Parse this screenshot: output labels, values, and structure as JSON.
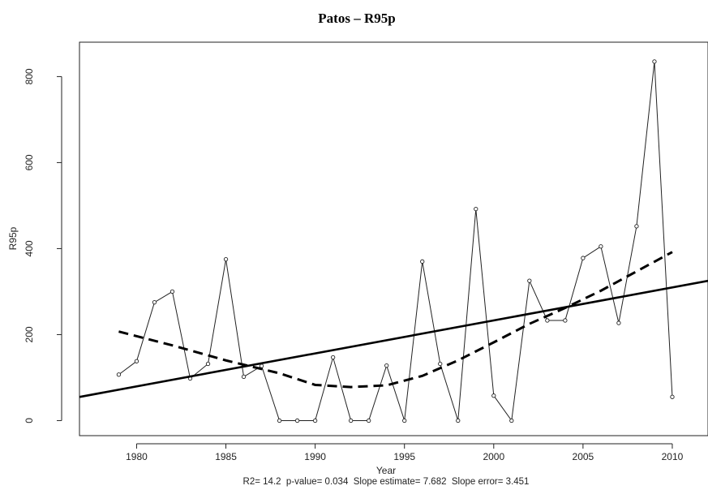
{
  "chart_data": {
    "type": "line",
    "title": "Patos – R95p",
    "xlabel": "Year",
    "ylabel": "R95p",
    "xlim": [
      1976.8,
      2012
    ],
    "ylim": [
      -35,
      880
    ],
    "x_ticks": [
      1980,
      1985,
      1990,
      1995,
      2000,
      2005,
      2010
    ],
    "y_ticks": [
      0,
      200,
      400,
      600,
      800
    ],
    "grid": false,
    "series": [
      {
        "style": "line-with-open-circles",
        "x": [
          1979,
          1980,
          1981,
          1982,
          1983,
          1984,
          1985,
          1986,
          1987,
          1988,
          1989,
          1990,
          1991,
          1992,
          1993,
          1994,
          1995,
          1996,
          1997,
          1998,
          1999,
          2000,
          2001,
          2002,
          2003,
          2004,
          2005,
          2006,
          2007,
          2008,
          2009,
          2010
        ],
        "y": [
          107,
          138,
          275,
          300,
          98,
          132,
          375,
          102,
          127,
          0,
          0,
          0,
          147,
          0,
          0,
          128,
          0,
          370,
          132,
          0,
          492,
          58,
          0,
          325,
          233,
          233,
          378,
          405,
          227,
          452,
          835,
          55
        ]
      },
      {
        "style": "linear-trend",
        "x": [
          1976.8,
          2012
        ],
        "y": [
          55,
          325
        ]
      },
      {
        "style": "dashed-smooth",
        "x": [
          1979,
          1982,
          1985,
          1988,
          1990,
          1992,
          1994,
          1996,
          1998,
          2000,
          2002,
          2004,
          2006,
          2008,
          2010
        ],
        "y": [
          207,
          175,
          140,
          110,
          83,
          78,
          82,
          104,
          140,
          182,
          225,
          262,
          302,
          347,
          392
        ]
      }
    ],
    "annotation": "R2= 14.2  p-value= 0.034  Slope estimate= 7.682  Slope error= 3.451"
  }
}
